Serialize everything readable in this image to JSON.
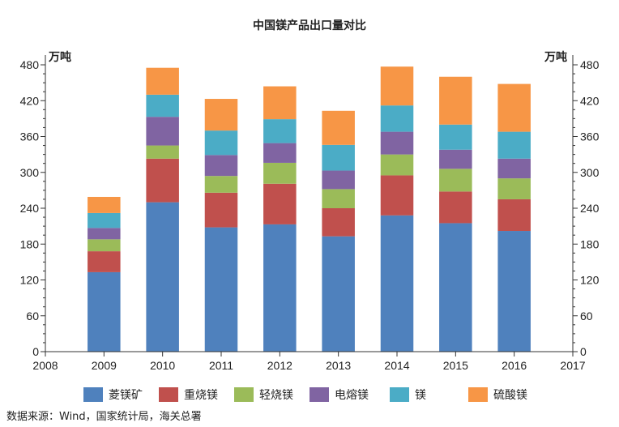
{
  "chart_data": {
    "type": "bar",
    "stacked": true,
    "title": "中国镁产品出口量对比",
    "y_unit_left": "万吨",
    "y_unit_right": "万吨",
    "x_ticks": [
      "2008",
      "2009",
      "2010",
      "2011",
      "2012",
      "2013",
      "2014",
      "2015",
      "2016",
      "2017"
    ],
    "categories": [
      "2009",
      "2010",
      "2011",
      "2012",
      "2013",
      "2014",
      "2015",
      "2016"
    ],
    "ylim": [
      0,
      480
    ],
    "y_ticks": [
      0,
      60,
      120,
      180,
      240,
      300,
      360,
      420,
      480
    ],
    "series": [
      {
        "name": "菱镁矿",
        "color": "#4f81bd",
        "values": [
          133,
          250,
          208,
          213,
          193,
          228,
          215,
          202
        ]
      },
      {
        "name": "重烧镁",
        "color": "#c0504d",
        "values": [
          35,
          73,
          58,
          68,
          47,
          67,
          53,
          53
        ]
      },
      {
        "name": "轻烧镁",
        "color": "#9bbb59",
        "values": [
          20,
          22,
          28,
          35,
          32,
          35,
          38,
          35
        ]
      },
      {
        "name": "电熔镁",
        "color": "#8064a2",
        "values": [
          19,
          48,
          35,
          33,
          31,
          38,
          32,
          33
        ]
      },
      {
        "name": "镁",
        "color": "#4bacc6",
        "values": [
          25,
          37,
          41,
          40,
          43,
          44,
          42,
          45
        ]
      },
      {
        "name": "硫酸镁",
        "color": "#f79646",
        "values": [
          27,
          45,
          53,
          55,
          57,
          65,
          80,
          80
        ]
      }
    ],
    "legend_position": "bottom",
    "grid": false
  },
  "source_note": "数据来源：Wind，国家统计局，海关总署"
}
